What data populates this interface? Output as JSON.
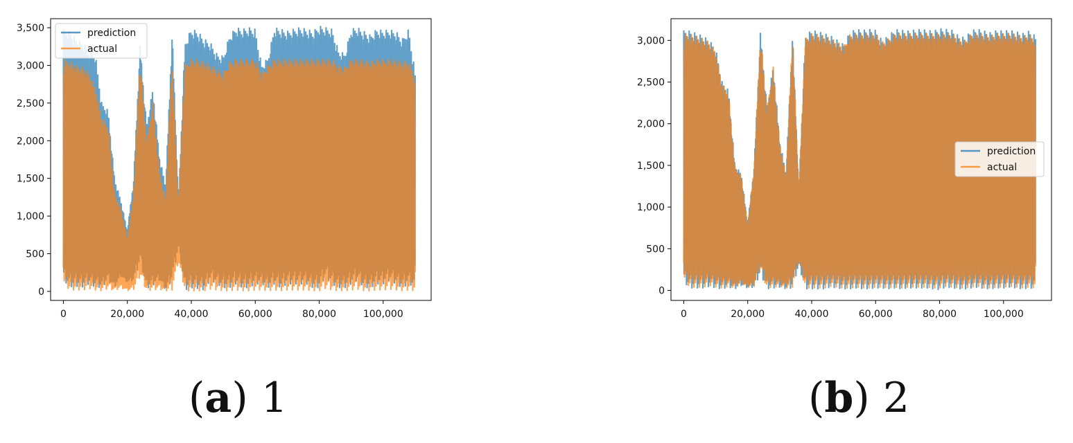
{
  "captions": [
    {
      "letter": "a",
      "text": "1"
    },
    {
      "letter": "b",
      "text": "2"
    }
  ],
  "chart_data": [
    {
      "type": "line",
      "title": "",
      "xlabel": "",
      "ylabel": "",
      "xlim": [
        -4000,
        115000
      ],
      "ylim": [
        -120,
        3620
      ],
      "xticks": [
        0,
        20000,
        40000,
        60000,
        80000,
        100000
      ],
      "xtick_labels": [
        "0",
        "20,000",
        "40,000",
        "60,000",
        "80,000",
        "100,000"
      ],
      "yticks": [
        0,
        500,
        1000,
        1500,
        2000,
        2500,
        3000,
        3500
      ],
      "ytick_labels": [
        "0",
        "500",
        "1,000",
        "1,500",
        "2,000",
        "2,500",
        "3,000",
        "3,500"
      ],
      "legend_position": "top-left",
      "grid": false,
      "x": [
        0,
        2000,
        4000,
        6000,
        8000,
        10000,
        12000,
        14000,
        16000,
        18000,
        20000,
        22000,
        24000,
        26000,
        28000,
        30000,
        32000,
        34000,
        36000,
        38000,
        40000,
        42000,
        44000,
        46000,
        48000,
        50000,
        52000,
        54000,
        56000,
        58000,
        60000,
        62000,
        64000,
        66000,
        68000,
        70000,
        72000,
        74000,
        76000,
        78000,
        80000,
        82000,
        84000,
        86000,
        88000,
        90000,
        92000,
        94000,
        96000,
        98000,
        100000,
        102000,
        104000,
        106000,
        108000,
        110000
      ],
      "series": [
        {
          "name": "prediction",
          "color": "#1f77b4",
          "band_low": [
            150,
            60,
            70,
            60,
            100,
            60,
            50,
            150,
            50,
            200,
            120,
            150,
            400,
            40,
            80,
            150,
            20,
            150,
            600,
            20,
            50,
            40,
            20,
            150,
            100,
            50,
            50,
            100,
            50,
            50,
            100,
            100,
            50,
            100,
            50,
            100,
            100,
            100,
            100,
            50,
            50,
            200,
            100,
            50,
            50,
            100,
            150,
            50,
            50,
            100,
            100,
            150,
            100,
            50,
            100,
            50
          ],
          "band_high": [
            3480,
            3450,
            3350,
            3300,
            3200,
            3150,
            2500,
            2400,
            1500,
            1200,
            800,
            1500,
            3300,
            2200,
            2700,
            1800,
            1400,
            3470,
            1200,
            3300,
            3480,
            3450,
            3350,
            3300,
            3150,
            3120,
            3400,
            3500,
            3480,
            3500,
            3480,
            3000,
            3100,
            3500,
            3480,
            3450,
            3480,
            3500,
            3480,
            3450,
            3520,
            3500,
            3480,
            3200,
            3150,
            3480,
            3500,
            3450,
            3400,
            3480,
            3460,
            3470,
            3450,
            3350,
            3480,
            2900
          ]
        },
        {
          "name": "actual",
          "color": "#ff7f0e",
          "band_low": [
            100,
            20,
            20,
            20,
            40,
            20,
            10,
            40,
            10,
            50,
            10,
            30,
            200,
            10,
            20,
            30,
            10,
            20,
            400,
            10,
            10,
            10,
            10,
            30,
            20,
            10,
            10,
            20,
            10,
            10,
            20,
            20,
            10,
            20,
            10,
            20,
            20,
            20,
            20,
            10,
            10,
            40,
            20,
            10,
            10,
            20,
            30,
            10,
            10,
            20,
            20,
            30,
            20,
            10,
            20,
            10
          ],
          "band_high": [
            3080,
            3050,
            3000,
            2980,
            2900,
            2700,
            2300,
            2200,
            1300,
            1100,
            700,
            1300,
            3080,
            2000,
            2500,
            1600,
            1200,
            3080,
            1100,
            3000,
            3080,
            3070,
            3050,
            3000,
            2950,
            2900,
            3050,
            3080,
            3080,
            3080,
            3080,
            2900,
            3000,
            3080,
            3080,
            3080,
            3080,
            3080,
            3080,
            3080,
            3080,
            3080,
            3080,
            3000,
            2980,
            3080,
            3080,
            3070,
            3050,
            3080,
            3080,
            3080,
            3070,
            3050,
            3060,
            2850
          ]
        }
      ]
    },
    {
      "type": "line",
      "title": "",
      "xlabel": "",
      "ylabel": "",
      "xlim": [
        -4000,
        115000
      ],
      "ylim": [
        -120,
        3260
      ],
      "xticks": [
        0,
        20000,
        40000,
        60000,
        80000,
        100000
      ],
      "xtick_labels": [
        "0",
        "20,000",
        "40,000",
        "60,000",
        "80,000",
        "100,000"
      ],
      "yticks": [
        0,
        500,
        1000,
        1500,
        2000,
        2500,
        3000
      ],
      "ytick_labels": [
        "0",
        "500",
        "1,000",
        "1,500",
        "2,000",
        "2,500",
        "3,000"
      ],
      "legend_position": "center-right",
      "grid": false,
      "x": [
        0,
        2000,
        4000,
        6000,
        8000,
        10000,
        12000,
        14000,
        16000,
        18000,
        20000,
        22000,
        24000,
        26000,
        28000,
        30000,
        32000,
        34000,
        36000,
        38000,
        40000,
        42000,
        44000,
        46000,
        48000,
        50000,
        52000,
        54000,
        56000,
        58000,
        60000,
        62000,
        64000,
        66000,
        68000,
        70000,
        72000,
        74000,
        76000,
        78000,
        80000,
        82000,
        84000,
        86000,
        88000,
        90000,
        92000,
        94000,
        96000,
        98000,
        100000,
        102000,
        104000,
        106000,
        108000,
        110000
      ],
      "series": [
        {
          "name": "prediction",
          "color": "#1f77b4",
          "band_low": [
            100,
            30,
            30,
            30,
            50,
            30,
            20,
            40,
            20,
            60,
            30,
            40,
            200,
            20,
            30,
            40,
            20,
            30,
            300,
            20,
            20,
            20,
            20,
            40,
            30,
            20,
            20,
            30,
            20,
            20,
            30,
            30,
            20,
            30,
            20,
            30,
            30,
            30,
            30,
            20,
            10,
            40,
            30,
            20,
            20,
            30,
            40,
            20,
            20,
            30,
            30,
            40,
            30,
            20,
            30,
            20
          ],
          "band_high": [
            3120,
            3110,
            3080,
            3050,
            3000,
            2900,
            2500,
            2400,
            1500,
            1400,
            800,
            1500,
            3120,
            2200,
            2700,
            1800,
            1400,
            3110,
            1200,
            3050,
            3120,
            3100,
            3080,
            3050,
            3000,
            2950,
            3100,
            3130,
            3120,
            3130,
            3120,
            3000,
            3050,
            3130,
            3120,
            3110,
            3120,
            3130,
            3120,
            3110,
            3140,
            3130,
            3120,
            3050,
            3030,
            3120,
            3130,
            3110,
            3090,
            3120,
            3110,
            3120,
            3100,
            3080,
            3110,
            3050
          ]
        },
        {
          "name": "actual",
          "color": "#ff7f0e",
          "band_low": [
            120,
            40,
            40,
            40,
            60,
            40,
            30,
            50,
            30,
            80,
            40,
            50,
            250,
            30,
            40,
            50,
            30,
            40,
            350,
            30,
            30,
            30,
            30,
            50,
            40,
            30,
            30,
            40,
            30,
            30,
            40,
            40,
            30,
            40,
            30,
            40,
            40,
            40,
            40,
            30,
            30,
            50,
            40,
            30,
            30,
            40,
            50,
            30,
            30,
            40,
            40,
            50,
            40,
            30,
            40,
            30
          ],
          "band_high": [
            3080,
            3070,
            3050,
            3020,
            2980,
            2880,
            2480,
            2380,
            1480,
            1380,
            780,
            1480,
            3080,
            2180,
            2680,
            1780,
            1380,
            3080,
            1180,
            3020,
            3080,
            3070,
            3050,
            3020,
            2980,
            2930,
            3070,
            3080,
            3080,
            3080,
            3080,
            2980,
            3020,
            3080,
            3080,
            3080,
            3080,
            3080,
            3080,
            3080,
            3080,
            3080,
            3080,
            3020,
            3000,
            3080,
            3080,
            3070,
            3060,
            3080,
            3080,
            3080,
            3070,
            3050,
            3070,
            3030
          ]
        }
      ]
    }
  ]
}
